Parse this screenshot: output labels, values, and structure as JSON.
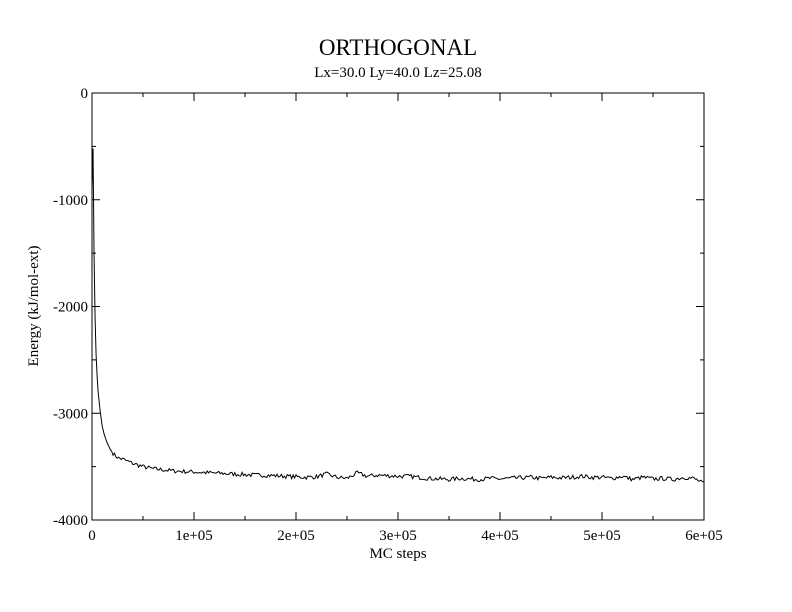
{
  "chart_data": {
    "type": "line",
    "title": "ORTHOGONAL",
    "subtitle": "Lx=30.0 Ly=40.0 Lz=25.08",
    "xlabel": "MC steps",
    "ylabel": "Energy (kJ/mol-ext)",
    "xlim": [
      0,
      600000
    ],
    "ylim": [
      -4000,
      0
    ],
    "xticks": [
      0,
      100000,
      200000,
      300000,
      400000,
      500000,
      600000
    ],
    "xtick_labels": [
      "0",
      "1e+05",
      "2e+05",
      "3e+05",
      "4e+05",
      "5e+05",
      "6e+05"
    ],
    "yticks": [
      0,
      -1000,
      -2000,
      -3000,
      -4000
    ],
    "ytick_labels": [
      "0",
      "-1000",
      "-2000",
      "-3000",
      "-4000"
    ],
    "grid": false,
    "legend": "none",
    "series": [
      {
        "color": "#000000",
        "x": [
          0,
          1000,
          2000,
          3000,
          4000,
          5000,
          6000,
          8000,
          10000,
          12000,
          15000,
          18000,
          22000,
          26000,
          30000,
          35000,
          40000,
          50000,
          60000,
          70000,
          80000,
          90000,
          100000,
          110000,
          120000,
          130000,
          140000,
          150000,
          160000,
          170000,
          180000,
          190000,
          200000,
          210000,
          220000,
          230000,
          240000,
          250000,
          260000,
          270000,
          280000,
          290000,
          300000,
          310000,
          320000,
          330000,
          340000,
          350000,
          360000,
          370000,
          380000,
          390000,
          400000,
          410000,
          420000,
          430000,
          440000,
          450000,
          460000,
          470000,
          480000,
          490000,
          500000,
          510000,
          520000,
          530000,
          540000,
          550000,
          560000,
          570000,
          580000,
          590000,
          600000
        ],
        "y": [
          -900,
          -520,
          -1500,
          -2100,
          -2450,
          -2650,
          -2800,
          -2980,
          -3120,
          -3200,
          -3280,
          -3340,
          -3390,
          -3420,
          -3430,
          -3450,
          -3470,
          -3500,
          -3520,
          -3530,
          -3540,
          -3545,
          -3550,
          -3555,
          -3560,
          -3565,
          -3570,
          -3575,
          -3580,
          -3580,
          -3585,
          -3590,
          -3595,
          -3600,
          -3595,
          -3570,
          -3600,
          -3610,
          -3560,
          -3590,
          -3580,
          -3585,
          -3590,
          -3590,
          -3600,
          -3610,
          -3615,
          -3620,
          -3610,
          -3615,
          -3620,
          -3610,
          -3615,
          -3610,
          -3605,
          -3600,
          -3610,
          -3600,
          -3605,
          -3600,
          -3590,
          -3600,
          -3600,
          -3610,
          -3590,
          -3620,
          -3600,
          -3615,
          -3610,
          -3620,
          -3600,
          -3610,
          -3660
        ]
      }
    ]
  }
}
